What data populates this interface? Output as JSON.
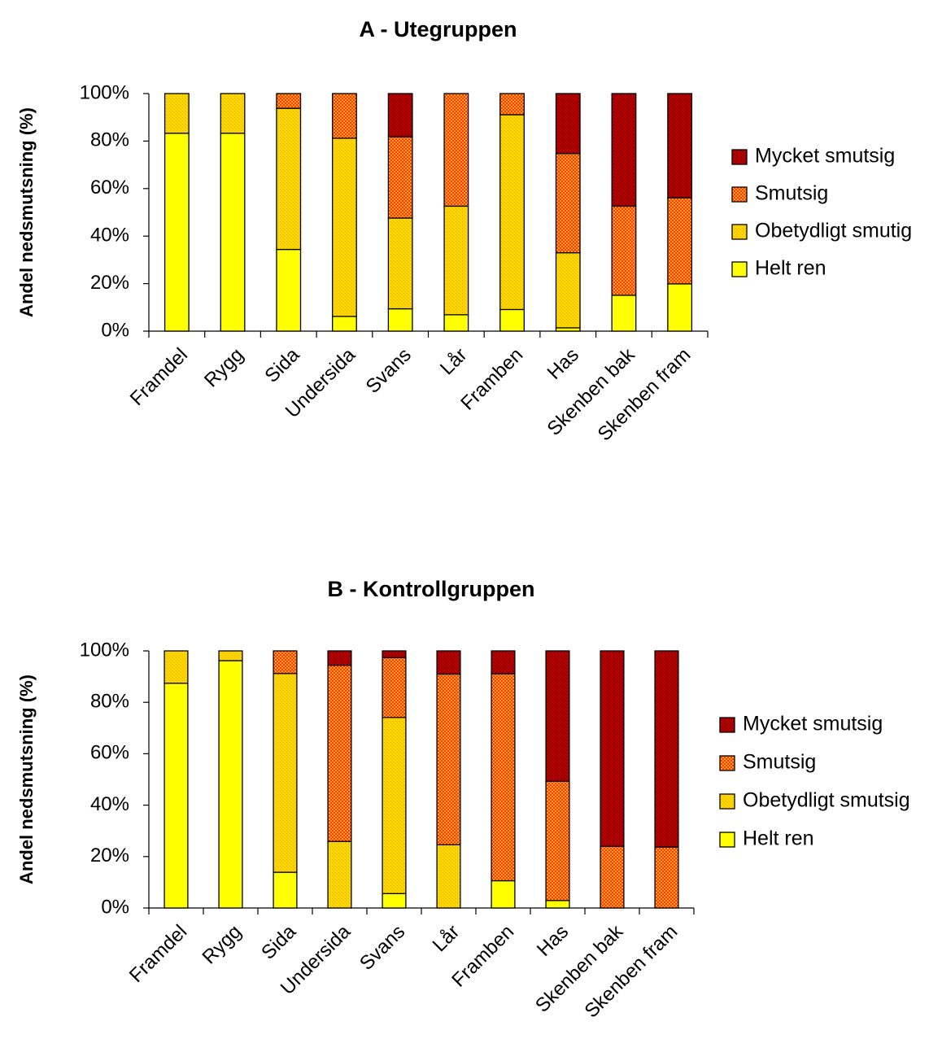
{
  "chart_data": [
    {
      "type": "bar",
      "stacked": true,
      "title": "A - Utegruppen",
      "ylabel": "Andel nedsmutsning (%)",
      "xlabel": "",
      "ylim": [
        0,
        100
      ],
      "yticks": [
        "0%",
        "20%",
        "40%",
        "60%",
        "80%",
        "100%"
      ],
      "legend_position": "right",
      "categories": [
        "Framdel",
        "Rygg",
        "Sida",
        "Undersida",
        "Svans",
        "Lår",
        "Framben",
        "Has",
        "Skenben bak",
        "Skenben fram"
      ],
      "series": [
        {
          "name": "Helt ren",
          "color": "#ffff00",
          "values": [
            83.3,
            83.3,
            34.4,
            6.2,
            9.4,
            6.9,
            9.1,
            1.4,
            15.1,
            19.9
          ]
        },
        {
          "name": "Obetydligt smutig",
          "color": "#ffd700",
          "values": [
            16.7,
            16.7,
            59.4,
            75.0,
            38.2,
            45.7,
            82.0,
            31.6,
            0,
            0
          ]
        },
        {
          "name": "Smutsig",
          "color": "#ff6a00",
          "values": [
            0,
            0,
            6.2,
            18.8,
            34.2,
            47.4,
            8.9,
            41.8,
            37.5,
            36.2
          ]
        },
        {
          "name": "Mycket smutsig",
          "color": "#c00000",
          "values": [
            0,
            0,
            0,
            0,
            18.2,
            0,
            0,
            25.2,
            47.4,
            43.9
          ]
        }
      ]
    },
    {
      "type": "bar",
      "stacked": true,
      "title": "B - Kontrollgruppen",
      "ylabel": "Andel nedsmutsning (%)",
      "xlabel": "",
      "ylim": [
        0,
        100
      ],
      "yticks": [
        "0%",
        "20%",
        "40%",
        "60%",
        "80%",
        "100%"
      ],
      "legend_position": "right",
      "categories": [
        "Framdel",
        "Rygg",
        "Sida",
        "Undersida",
        "Svans",
        "Lår",
        "Framben",
        "Has",
        "Skenben bak",
        "Skenben fram"
      ],
      "series": [
        {
          "name": "Helt ren",
          "color": "#ffff00",
          "values": [
            87.4,
            96.2,
            13.9,
            0,
            5.6,
            0,
            10.6,
            2.9,
            0,
            0
          ]
        },
        {
          "name": "Obetydligt smutsig",
          "color": "#ffd700",
          "values": [
            12.6,
            3.8,
            77.3,
            25.9,
            68.5,
            24.6,
            0,
            0,
            0,
            0
          ]
        },
        {
          "name": "Smutsig",
          "color": "#ff6a00",
          "values": [
            0,
            0,
            8.8,
            68.5,
            23.3,
            66.4,
            80.5,
            46.4,
            24.0,
            23.7
          ]
        },
        {
          "name": "Mycket smutsig",
          "color": "#c00000",
          "values": [
            0,
            0,
            0,
            5.6,
            2.6,
            9.0,
            8.9,
            50.7,
            76.0,
            76.3
          ]
        }
      ]
    }
  ]
}
